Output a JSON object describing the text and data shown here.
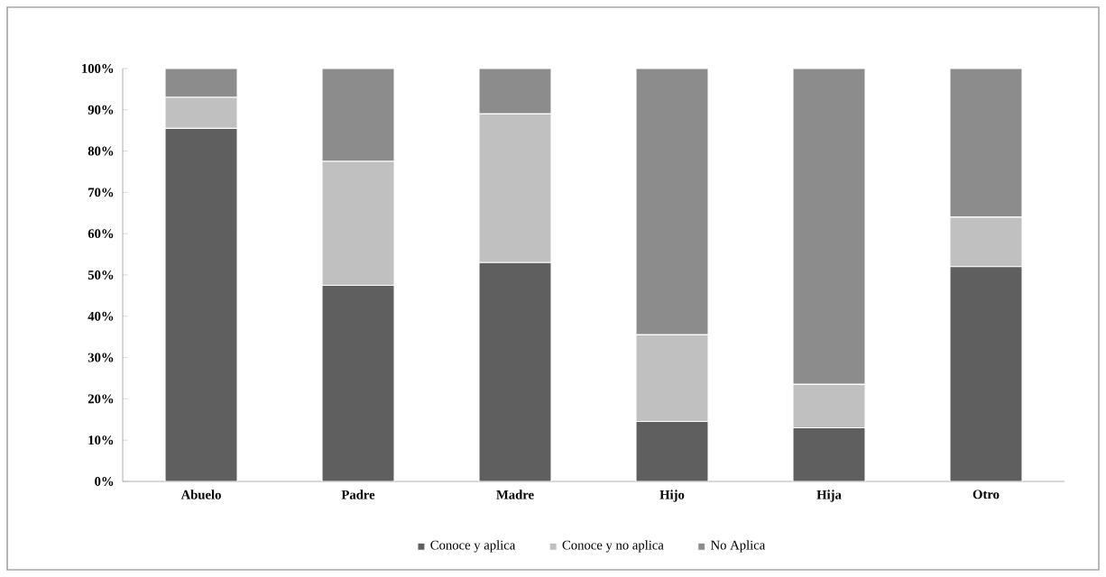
{
  "chart_data": {
    "type": "bar",
    "stacked": true,
    "categories": [
      "Abuelo",
      "Padre",
      "Madre",
      "Hijo",
      "Hija",
      "Otro"
    ],
    "series": [
      {
        "name": "Conoce y aplica",
        "color": "#5f5f5f",
        "values": [
          85.5,
          47.5,
          53,
          14.5,
          13,
          52
        ]
      },
      {
        "name": "Conoce y no aplica",
        "color": "#c0c0c0",
        "values": [
          7.5,
          30,
          36,
          21,
          10.5,
          12
        ]
      },
      {
        "name": "No Aplica",
        "color": "#8c8c8c",
        "values": [
          7,
          22.5,
          11,
          64.5,
          76.5,
          36
        ]
      }
    ],
    "ylim": [
      0,
      100
    ],
    "yticks": [
      {
        "value": 0,
        "label": "0%"
      },
      {
        "value": 10,
        "label": "10%"
      },
      {
        "value": 20,
        "label": "20%"
      },
      {
        "value": 30,
        "label": "30%"
      },
      {
        "value": 40,
        "label": "40%"
      },
      {
        "value": 50,
        "label": "50%"
      },
      {
        "value": 60,
        "label": "60%"
      },
      {
        "value": 70,
        "label": "70%"
      },
      {
        "value": 80,
        "label": "80%"
      },
      {
        "value": 90,
        "label": "90%"
      },
      {
        "value": 100,
        "label": "100%"
      }
    ],
    "legend": "bottom",
    "grid": false
  }
}
